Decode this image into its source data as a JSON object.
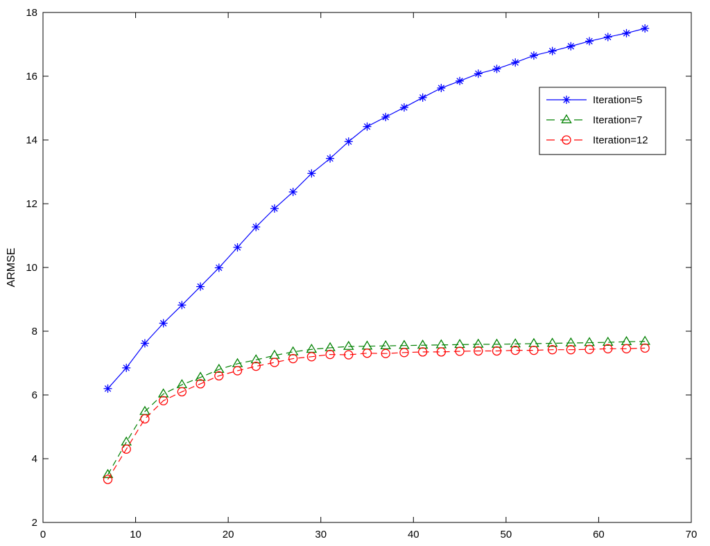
{
  "chart_data": {
    "type": "line",
    "title": "",
    "xlabel": "",
    "ylabel": "ARMSE",
    "xlim": [
      0,
      70
    ],
    "ylim": [
      2,
      18
    ],
    "xticks": [
      0,
      10,
      20,
      30,
      40,
      50,
      60,
      70
    ],
    "yticks": [
      2,
      4,
      6,
      8,
      10,
      12,
      14,
      16,
      18
    ],
    "grid": false,
    "legend_position": "top-right",
    "x": [
      7,
      9,
      11,
      13,
      15,
      17,
      19,
      21,
      23,
      25,
      27,
      29,
      31,
      33,
      35,
      37,
      39,
      41,
      43,
      45,
      47,
      49,
      51,
      53,
      55,
      57,
      59,
      61,
      63,
      65
    ],
    "series": [
      {
        "name": "Iteration=5",
        "color": "#0000ff",
        "line_style": "solid",
        "marker": "asterisk",
        "values": [
          6.2,
          6.85,
          7.62,
          8.25,
          8.82,
          9.4,
          9.99,
          10.63,
          11.27,
          11.85,
          12.37,
          12.95,
          13.42,
          13.95,
          14.42,
          14.72,
          15.02,
          15.33,
          15.63,
          15.85,
          16.08,
          16.23,
          16.43,
          16.65,
          16.79,
          16.94,
          17.1,
          17.23,
          17.35,
          17.5
        ]
      },
      {
        "name": "Iteration=7",
        "color": "#008000",
        "line_style": "dashed",
        "marker": "triangle",
        "values": [
          3.5,
          4.52,
          5.48,
          6.03,
          6.32,
          6.55,
          6.8,
          6.98,
          7.1,
          7.24,
          7.35,
          7.43,
          7.48,
          7.52,
          7.53,
          7.54,
          7.55,
          7.56,
          7.57,
          7.58,
          7.59,
          7.59,
          7.6,
          7.61,
          7.62,
          7.63,
          7.64,
          7.65,
          7.67,
          7.68
        ]
      },
      {
        "name": "Iteration=12",
        "color": "#ff0000",
        "line_style": "dashed",
        "marker": "circle",
        "values": [
          3.35,
          4.3,
          5.25,
          5.82,
          6.1,
          6.35,
          6.6,
          6.76,
          6.9,
          7.02,
          7.14,
          7.2,
          7.27,
          7.26,
          7.31,
          7.3,
          7.33,
          7.35,
          7.35,
          7.37,
          7.38,
          7.38,
          7.4,
          7.4,
          7.42,
          7.42,
          7.43,
          7.45,
          7.45,
          7.47
        ]
      }
    ]
  }
}
